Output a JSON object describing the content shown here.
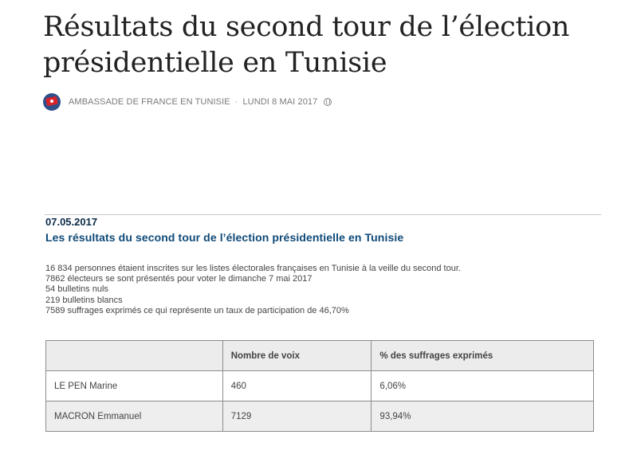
{
  "article": {
    "title_line1": "Résultats du second tour de l’élection",
    "title_line2": "présidentielle en Tunisie",
    "author": "AMBASSADE DE FRANCE EN TUNISIE",
    "separator": "·",
    "date": "LUNDI 8 MAI 2017",
    "visibility_icon": "globe-icon"
  },
  "document": {
    "date": "07.05.2017",
    "heading": "Les résultats du second tour de l’élection présidentielle en Tunisie",
    "paragraphs": [
      "16 834 personnes étaient inscrites sur les listes électorales françaises en Tunisie à la veille du second tour.",
      "7862 électeurs se sont présentés pour voter le dimanche 7 mai 2017",
      "54 bulletins nuls",
      "219 bulletins blancs",
      "7589 suffrages exprimés ce qui représente un taux de participation de 46,70%"
    ],
    "table": {
      "headers": [
        "",
        "Nombre de voix",
        "% des suffrages exprimés"
      ],
      "rows": [
        [
          "LE PEN Marine",
          "460",
          "6,06%"
        ],
        [
          "MACRON Emmanuel",
          "7129",
          "93,94%"
        ]
      ]
    }
  },
  "colors": {
    "heading_blue": "#0f4a78",
    "date_navy": "#0b2b4a",
    "header_bg": "#ececec",
    "alt_row_bg": "#eeeeee"
  }
}
